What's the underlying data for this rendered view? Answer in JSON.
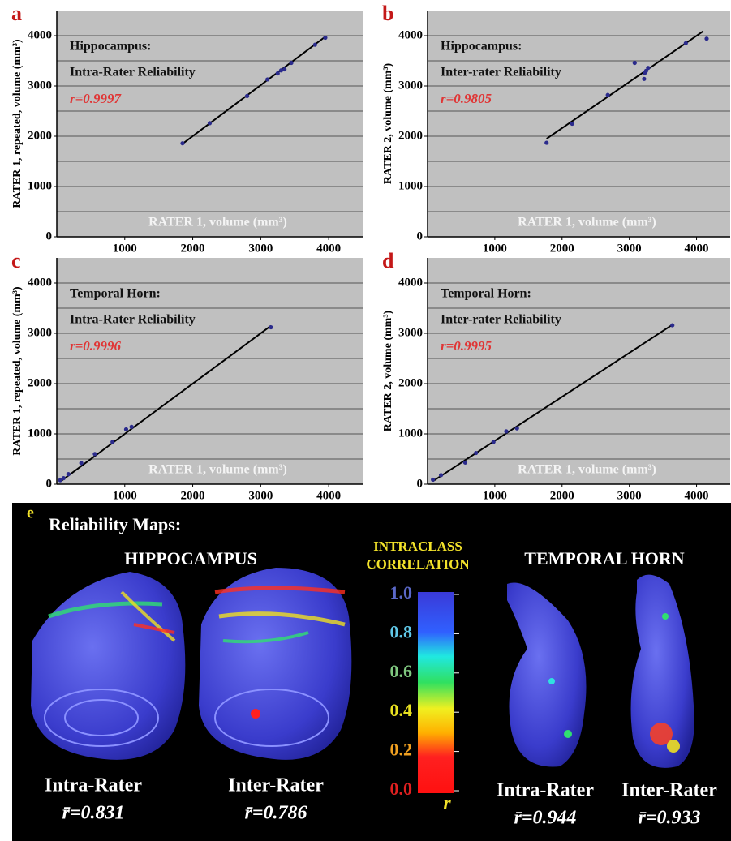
{
  "chart_data": [
    {
      "type": "scatter",
      "label": "a",
      "annotations": [
        "Hippocampus:",
        "Intra-Rater Reliability"
      ],
      "r_label": "r=0.9997",
      "xlabel": "RATER 1, volume (mm³)",
      "ylabel": "RATER 1, repeated, volume (mm³)",
      "xlim": [
        0,
        4500
      ],
      "ylim": [
        0,
        4500
      ],
      "xticks": [
        1000,
        2000,
        3000,
        4000
      ],
      "yticks": [
        0,
        1000,
        2000,
        3000,
        4000
      ],
      "minor_yticks": [
        500,
        1500,
        2500,
        3500
      ],
      "grid": true,
      "points": {
        "color": "#2b2b8c",
        "x": [
          1850,
          2250,
          2800,
          3100,
          3250,
          3300,
          3350,
          3450,
          3800,
          3950
        ],
        "y": [
          1860,
          2260,
          2800,
          3130,
          3250,
          3310,
          3330,
          3460,
          3820,
          3960
        ]
      },
      "fit": {
        "color": "#000000",
        "x": [
          1850,
          3950
        ],
        "y": [
          1850,
          3980
        ]
      }
    },
    {
      "type": "scatter",
      "label": "b",
      "annotations": [
        "Hippocampus:",
        "Inter-rater Reliability"
      ],
      "r_label": "r=0.9805",
      "xlabel": "RATER 1, volume (mm³)",
      "ylabel": "RATER 2, volume (mm³)",
      "xlim": [
        0,
        4500
      ],
      "ylim": [
        0,
        4500
      ],
      "xticks": [
        1000,
        2000,
        3000,
        4000
      ],
      "yticks": [
        0,
        1000,
        2000,
        3000,
        4000
      ],
      "minor_yticks": [
        500,
        1500,
        2500,
        3500
      ],
      "grid": true,
      "points": {
        "color": "#2b2b8c",
        "x": [
          1770,
          2150,
          2680,
          3080,
          3220,
          3230,
          3250,
          3280,
          3840,
          4150
        ],
        "y": [
          1870,
          2250,
          2820,
          3460,
          3140,
          3260,
          3300,
          3360,
          3850,
          3940
        ]
      },
      "fit": {
        "color": "#000000",
        "x": [
          1770,
          4100
        ],
        "y": [
          1950,
          4090
        ]
      }
    },
    {
      "type": "scatter",
      "label": "c",
      "annotations": [
        "Temporal Horn:",
        "Intra-Rater Reliability"
      ],
      "r_label": "r=0.9996",
      "xlabel": "RATER 1, volume (mm³)",
      "ylabel": "RATER 1, repeated, volume (mm³)",
      "xlim": [
        0,
        4500
      ],
      "ylim": [
        0,
        4500
      ],
      "xticks": [
        1000,
        2000,
        3000,
        4000
      ],
      "yticks": [
        0,
        1000,
        2000,
        3000,
        4000
      ],
      "minor_yticks": [
        500,
        1500,
        2500,
        3500
      ],
      "grid": true,
      "points": {
        "color": "#2b2b8c",
        "x": [
          50,
          100,
          170,
          360,
          560,
          820,
          1020,
          1100,
          3150
        ],
        "y": [
          80,
          120,
          200,
          420,
          600,
          840,
          1090,
          1140,
          3120
        ]
      },
      "fit": {
        "color": "#000000",
        "x": [
          50,
          3150
        ],
        "y": [
          50,
          3150
        ]
      }
    },
    {
      "type": "scatter",
      "label": "d",
      "annotations": [
        "Temporal Horn:",
        "Inter-rater Reliability"
      ],
      "r_label": "r=0.9995",
      "xlabel": "RATER 1, volume (mm³)",
      "ylabel": "RATER 2, volume (mm³)",
      "xlim": [
        0,
        4500
      ],
      "ylim": [
        0,
        4500
      ],
      "xticks": [
        1000,
        2000,
        3000,
        4000
      ],
      "yticks": [
        0,
        1000,
        2000,
        3000,
        4000
      ],
      "minor_yticks": [
        500,
        1500,
        2500,
        3500
      ],
      "grid": true,
      "points": {
        "color": "#2b2b8c",
        "x": [
          80,
          200,
          560,
          720,
          980,
          1170,
          1330,
          3640
        ],
        "y": [
          90,
          180,
          430,
          620,
          840,
          1050,
          1110,
          3160
        ]
      },
      "fit": {
        "color": "#000000",
        "x": [
          80,
          3640
        ],
        "y": [
          60,
          3170
        ]
      }
    }
  ],
  "reliability_maps": {
    "label": "e",
    "title": "Reliability Maps:",
    "groups": [
      "HIPPOCAMPUS",
      "TEMPORAL HORN"
    ],
    "colorbar": {
      "title": [
        "INTRACLASS",
        "CORRELATION"
      ],
      "symbol": "r",
      "lim": [
        0,
        1
      ],
      "ticks": [
        {
          "value": 1,
          "label": "1.0"
        },
        0.8,
        0.6,
        0.4,
        0.2,
        {
          "value": 0,
          "label": "0.0"
        }
      ]
    },
    "maps": [
      {
        "caption": "Intra-Rater",
        "mean": "r̄=0.831"
      },
      {
        "caption": "Inter-Rater",
        "mean": "r̄=0.786"
      },
      {
        "caption": "Intra-Rater",
        "mean": "r̄=0.944"
      },
      {
        "caption": "Inter-Rater",
        "mean": "r̄=0.933"
      }
    ]
  }
}
